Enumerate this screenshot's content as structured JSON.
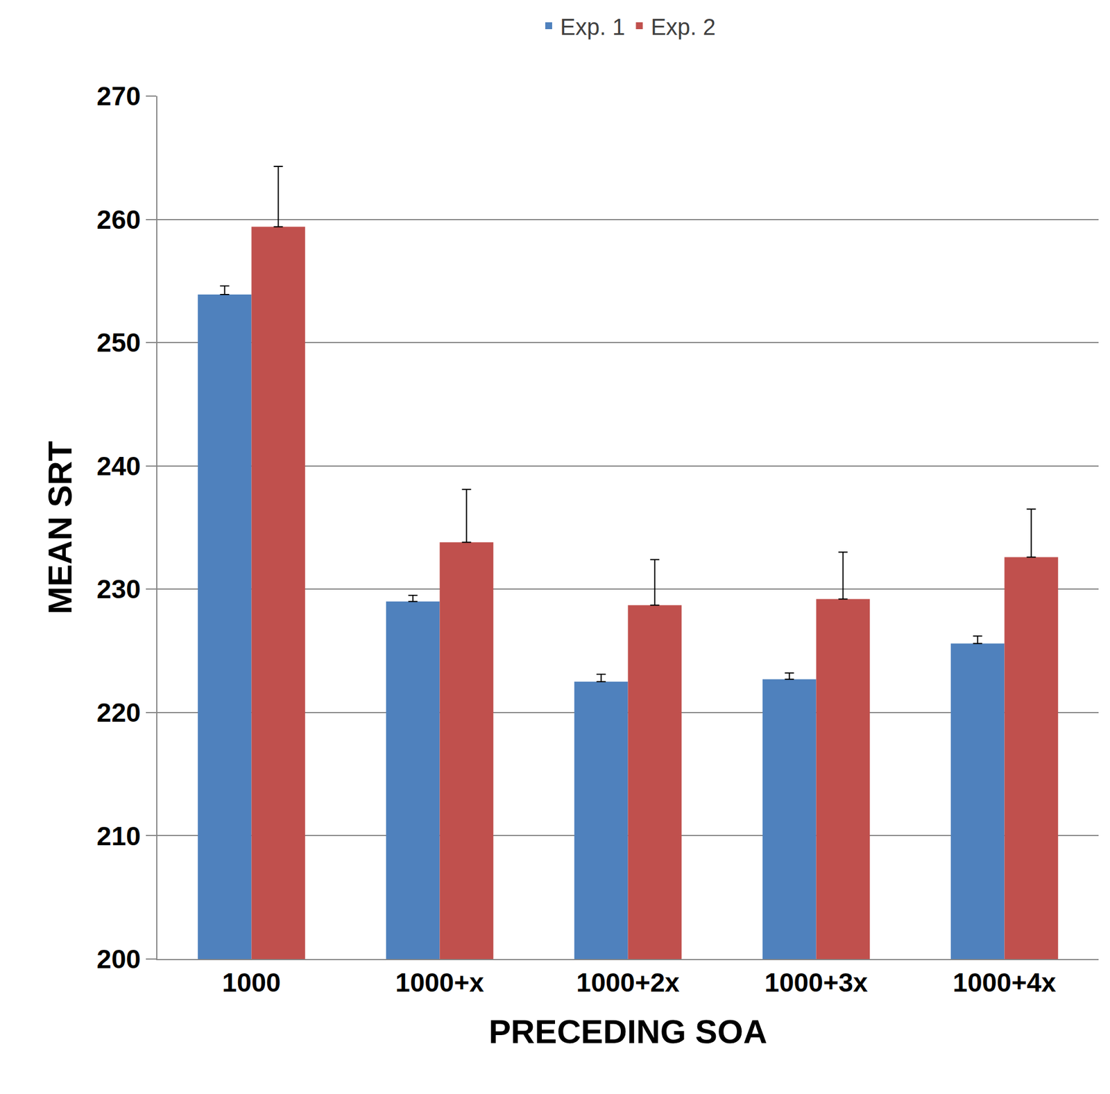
{
  "chart_data": {
    "type": "bar",
    "x_label": "PRECEDING SOA",
    "y_label": "MEAN SRT",
    "categories": [
      "1000",
      "1000+x",
      "1000+2x",
      "1000+3x",
      "1000+4x"
    ],
    "series": [
      {
        "name": "Exp. 1",
        "color": "#4f81bd",
        "values": [
          253.9,
          229.0,
          222.5,
          222.7,
          225.6
        ],
        "error": [
          0.7,
          0.5,
          0.6,
          0.5,
          0.6
        ]
      },
      {
        "name": "Exp. 2",
        "color": "#c0504d",
        "values": [
          259.4,
          233.8,
          228.7,
          229.2,
          232.6
        ],
        "error": [
          4.9,
          4.3,
          3.7,
          3.8,
          3.9
        ]
      }
    ],
    "ylim": [
      200,
      270
    ],
    "yticks": [
      200,
      210,
      220,
      230,
      240,
      250,
      260,
      270
    ],
    "grid": true,
    "legend": "top"
  }
}
